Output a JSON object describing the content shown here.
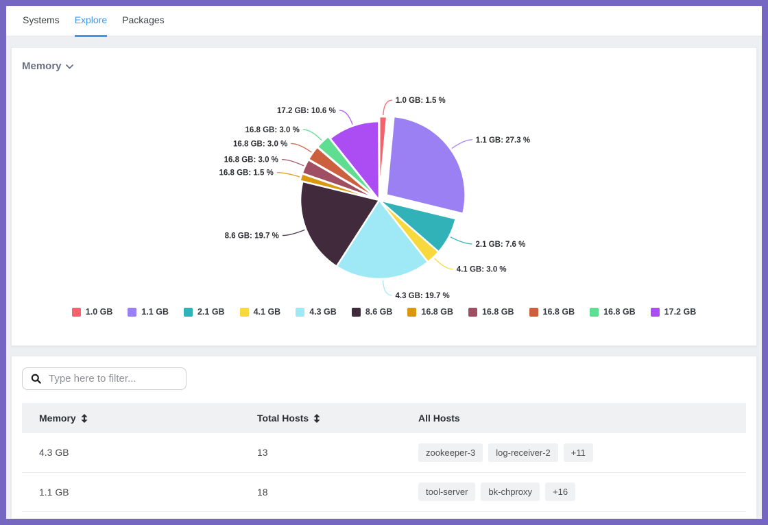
{
  "frame": {
    "border_color": "#7566c2",
    "accent_blue": "#3d97ee"
  },
  "tabs": [
    {
      "label": "Systems",
      "active": false
    },
    {
      "label": "Explore",
      "active": true
    },
    {
      "label": "Packages",
      "active": false
    }
  ],
  "memory_card": {
    "title": "Memory",
    "chevron_icon": "chevron-down"
  },
  "chart_data": {
    "type": "pie",
    "title": "Memory",
    "legend_position": "bottom",
    "slices": [
      {
        "label": "1.0 GB",
        "percent": 1.5,
        "color": "#f4626c",
        "callout": "1.0 GB: 1.5 %",
        "offset": 7
      },
      {
        "label": "1.1 GB",
        "percent": 27.3,
        "color": "#9b80f4",
        "callout": "1.1 GB: 27.3 %",
        "offset": 13
      },
      {
        "label": "2.1 GB",
        "percent": 7.6,
        "color": "#30b2b8",
        "callout": "2.1 GB: 7.6 %",
        "offset": 0
      },
      {
        "label": "4.1 GB",
        "percent": 3.0,
        "color": "#f7d93d",
        "callout": "4.1 GB: 3.0 %",
        "offset": 0
      },
      {
        "label": "4.3 GB",
        "percent": 19.7,
        "color": "#9fe8f5",
        "callout": "4.3 GB: 19.7 %",
        "offset": 0
      },
      {
        "label": "8.6 GB",
        "percent": 19.7,
        "color": "#402a3b",
        "callout": "8.6 GB: 19.7 %",
        "offset": 0
      },
      {
        "label": "16.8 GB",
        "percent": 1.5,
        "color": "#d8990f",
        "callout": "16.8 GB: 1.5 %",
        "offset": 4
      },
      {
        "label": "16.8 GB",
        "percent": 3.0,
        "color": "#a04f63",
        "callout": "16.8 GB: 3.0 %",
        "offset": 4
      },
      {
        "label": "16.8 GB",
        "percent": 3.0,
        "color": "#cc5f3e",
        "callout": "16.8 GB: 3.0 %",
        "offset": 4
      },
      {
        "label": "16.8 GB",
        "percent": 3.0,
        "color": "#5fdd90",
        "callout": "16.8 GB: 3.0 %",
        "offset": 4
      },
      {
        "label": "17.2 GB",
        "percent": 10.6,
        "color": "#ab4df2",
        "callout": "17.2 GB: 10.6 %",
        "offset": 0
      }
    ]
  },
  "filter": {
    "placeholder": "Type here to filter...",
    "icon": "search"
  },
  "table": {
    "columns": [
      {
        "label": "Memory",
        "sortable": true
      },
      {
        "label": "Total Hosts",
        "sortable": true
      },
      {
        "label": "All Hosts",
        "sortable": false
      }
    ],
    "rows": [
      {
        "memory": "4.3 GB",
        "total_hosts": "13",
        "hosts": [
          "zookeeper-3",
          "log-receiver-2"
        ],
        "more": "+11"
      },
      {
        "memory": "1.1 GB",
        "total_hosts": "18",
        "hosts": [
          "tool-server",
          "bk-chproxy"
        ],
        "more": "+16"
      }
    ]
  }
}
